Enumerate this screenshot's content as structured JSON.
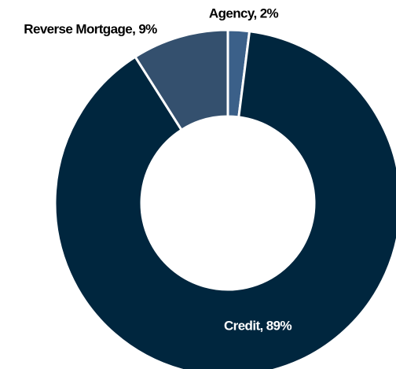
{
  "chart_data": {
    "type": "donut",
    "values": [
      2,
      89,
      9
    ],
    "value_labels": [
      "Agency, 2%",
      "Credit, 89%",
      "Reverse Mortgage, 9%"
    ],
    "colors": [
      "#3b6089",
      "#00263e",
      "#34506e"
    ],
    "label_colors": [
      "#000000",
      "#ffffff",
      "#000000"
    ]
  }
}
